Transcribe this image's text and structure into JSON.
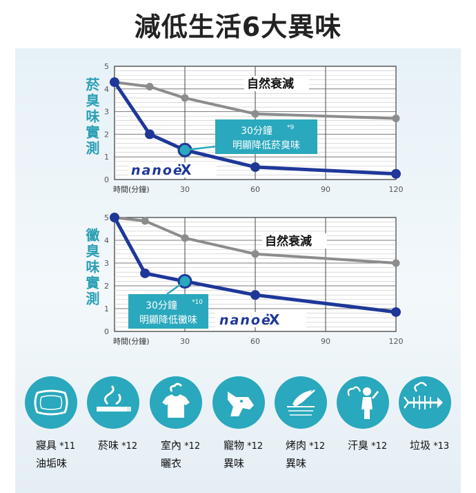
{
  "page": {
    "title": "減低生活6大異味"
  },
  "chart_data": [
    {
      "type": "line",
      "ylabel": "菸臭味實測",
      "xlabel": "時間(分鐘)",
      "x_ticks": [
        "30",
        "60",
        "90",
        "120"
      ],
      "y_ticks": [
        "0",
        "1",
        "2",
        "3",
        "4",
        "5"
      ],
      "xlim": [
        0,
        120
      ],
      "ylim": [
        0,
        5
      ],
      "grid": true,
      "series": [
        {
          "name": "自然衰減",
          "color": "#8c8c8c",
          "x": [
            0,
            15,
            30,
            60,
            120
          ],
          "y": [
            4.3,
            4.1,
            3.6,
            2.9,
            2.7
          ]
        },
        {
          "name": "nanoeX",
          "color": "#1e3799",
          "x": [
            0,
            15,
            30,
            60,
            120
          ],
          "y": [
            4.3,
            2.0,
            1.3,
            0.55,
            0.25
          ]
        }
      ],
      "callout": {
        "line1": "30分鐘",
        "note": "*9",
        "line2": "明顯降低菸臭味",
        "color": "#2aa8bd"
      },
      "brand": "nanoeX"
    },
    {
      "type": "line",
      "ylabel": "黴臭味實測",
      "xlabel": "時間(分鐘)",
      "x_ticks": [
        "30",
        "60",
        "90",
        "120"
      ],
      "y_ticks": [
        "0",
        "1",
        "2",
        "3",
        "4",
        "5"
      ],
      "xlim": [
        0,
        120
      ],
      "ylim": [
        0,
        5
      ],
      "grid": true,
      "series": [
        {
          "name": "自然衰減",
          "color": "#8c8c8c",
          "x": [
            0,
            13,
            30,
            60,
            120
          ],
          "y": [
            5.0,
            4.85,
            4.1,
            3.4,
            3.0
          ]
        },
        {
          "name": "nanoeX",
          "color": "#1e3799",
          "x": [
            0,
            13,
            30,
            60,
            120
          ],
          "y": [
            5.0,
            2.55,
            2.2,
            1.6,
            0.85
          ]
        }
      ],
      "callout": {
        "line1": "30分鐘",
        "note": "*10",
        "line2": "明顯降低黴味",
        "color": "#2aa8bd"
      },
      "brand": "nanoeX"
    }
  ],
  "icons": [
    {
      "icon": "pillow-icon",
      "label1": "寢具",
      "note": "*11",
      "label2": "油垢味"
    },
    {
      "icon": "cigarette-icon",
      "label1": "菸味",
      "note": "*12",
      "label2": ""
    },
    {
      "icon": "tshirt-icon",
      "label1": "室內",
      "note": "*12",
      "label2": "曬衣"
    },
    {
      "icon": "dog-icon",
      "label1": "寵物",
      "note": "*12",
      "label2": "異味"
    },
    {
      "icon": "grill-icon",
      "label1": "烤肉",
      "note": "*12",
      "label2": "異味"
    },
    {
      "icon": "sweat-person-icon",
      "label1": "汗臭",
      "note": "*12",
      "label2": ""
    },
    {
      "icon": "fish-bone-icon",
      "label1": "垃圾",
      "note": "*13",
      "label2": ""
    }
  ],
  "colors": {
    "accent": "#2aa8bd",
    "nanoe": "#1e3799",
    "natural": "#8c8c8c"
  }
}
